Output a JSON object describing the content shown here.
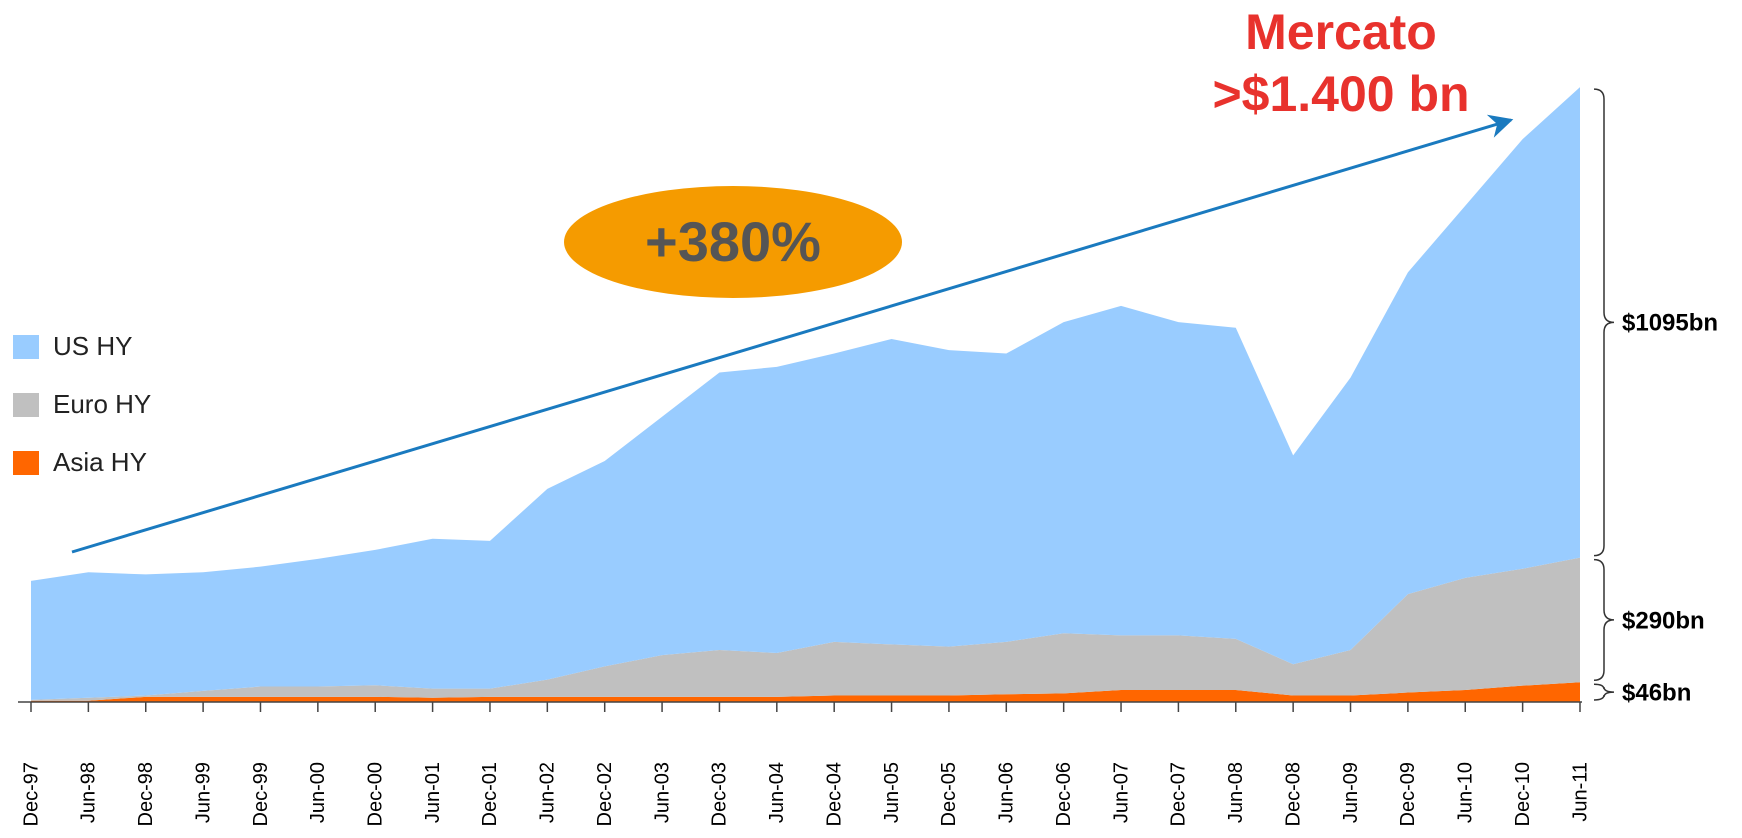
{
  "chart_data": {
    "type": "stacked-area",
    "categories": [
      "Dec-97",
      "Jun-98",
      "Dec-98",
      "Jun-99",
      "Dec-99",
      "Jun-00",
      "Dec-00",
      "Jun-01",
      "Dec-01",
      "Jun-02",
      "Dec-02",
      "Jun-03",
      "Dec-03",
      "Jun-04",
      "Dec-04",
      "Jun-05",
      "Dec-05",
      "Jun-06",
      "Dec-06",
      "Jun-07",
      "Dec-07",
      "Jun-08",
      "Dec-08",
      "Jun-09",
      "Dec-09",
      "Jun-10",
      "Dec-10",
      "Jun-11"
    ],
    "series": [
      {
        "name": "Asia HY",
        "color": "#ff6600",
        "values": [
          3,
          3,
          12,
          12,
          12,
          12,
          12,
          10,
          12,
          12,
          12,
          12,
          12,
          12,
          15,
          15,
          15,
          18,
          20,
          28,
          28,
          28,
          15,
          15,
          22,
          28,
          38,
          46
        ]
      },
      {
        "name": "Euro HY",
        "color": "#c0c0c0",
        "values": [
          2,
          7,
          3,
          14,
          24,
          24,
          27,
          21,
          19,
          40,
          71,
          97,
          109,
          102,
          125,
          119,
          114,
          122,
          140,
          127,
          127,
          119,
          73,
          106,
          229,
          261,
          272,
          290
        ]
      },
      {
        "name": "US HY",
        "color": "#99ccff",
        "values": [
          277,
          292,
          282,
          276,
          279,
          297,
          315,
          349,
          344,
          444,
          478,
          555,
          646,
          666,
          671,
          711,
          690,
          671,
          724,
          767,
          729,
          724,
          486,
          634,
          749,
          866,
          1000,
          1095
        ]
      }
    ],
    "legend_order": [
      "US HY",
      "Euro HY",
      "Asia HY"
    ],
    "ylim": [
      0,
      1450
    ],
    "annotations": [
      "Mercato",
      ">$1.400 bn",
      "+380%",
      "$1095bn",
      "$290bn",
      "$46bn"
    ]
  }
}
